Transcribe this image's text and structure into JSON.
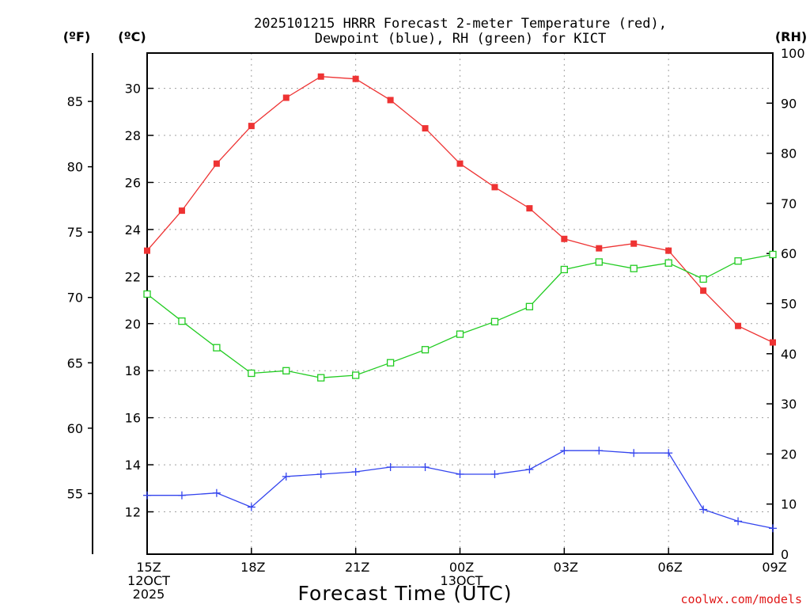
{
  "title_line1": "2025101215 HRRR Forecast 2-meter Temperature (red),",
  "title_line2": "Dewpoint (blue), RH (green) for KICT",
  "units": {
    "fahrenheit": "(ºF)",
    "celsius": "(ºC)",
    "rh": "(RH)"
  },
  "xlabel": "Forecast Time (UTC)",
  "credit": "coolwx.com/models",
  "colors": {
    "temperature": "#ee3333",
    "dewpoint": "#3344ee",
    "rh": "#22cc22",
    "axis": "#000000",
    "grid": "#a0a0a0"
  },
  "chart_data": {
    "type": "line",
    "title": "2025101215 HRRR Forecast 2-meter Temperature (red), Dewpoint (blue), RH (green) for KICT",
    "xlabel": "Forecast Time (UTC)",
    "x_hours": [
      0,
      1,
      2,
      3,
      4,
      5,
      6,
      7,
      8,
      9,
      10,
      11,
      12,
      13,
      14,
      15,
      16,
      17,
      18
    ],
    "x_ticks": [
      {
        "hour": 0,
        "lines": [
          "15Z",
          "12OCT",
          "2025"
        ]
      },
      {
        "hour": 3,
        "lines": [
          "18Z"
        ]
      },
      {
        "hour": 6,
        "lines": [
          "21Z"
        ]
      },
      {
        "hour": 9,
        "lines": [
          "00Z",
          "13OCT"
        ]
      },
      {
        "hour": 12,
        "lines": [
          "03Z"
        ]
      },
      {
        "hour": 15,
        "lines": [
          "06Z"
        ]
      },
      {
        "hour": 18,
        "lines": [
          "09Z"
        ]
      }
    ],
    "xlim": [
      0,
      18
    ],
    "celsius_ticks": [
      12,
      14,
      16,
      18,
      20,
      22,
      24,
      26,
      28,
      30
    ],
    "celsius_range": [
      10.2,
      31.5
    ],
    "fahrenheit_ticks": [
      55,
      60,
      65,
      70,
      75,
      80,
      85
    ],
    "rh_ticks": [
      0,
      10,
      20,
      30,
      40,
      50,
      60,
      70,
      80,
      90,
      100
    ],
    "rh_range": [
      0,
      100
    ],
    "series": [
      {
        "name": "Temperature",
        "axis": "celsius",
        "marker": "filled-square",
        "color": "#ee3333",
        "values": [
          23.1,
          24.8,
          26.8,
          28.4,
          29.6,
          30.5,
          30.4,
          29.5,
          28.3,
          26.8,
          25.8,
          24.9,
          23.6,
          23.2,
          23.4,
          23.1,
          21.4,
          19.9,
          19.2
        ]
      },
      {
        "name": "Dewpoint",
        "axis": "celsius",
        "marker": "plus",
        "color": "#3344ee",
        "values": [
          12.7,
          12.7,
          12.8,
          12.2,
          13.5,
          13.6,
          13.7,
          13.9,
          13.9,
          13.6,
          13.6,
          13.8,
          14.6,
          14.6,
          14.5,
          14.5,
          12.1,
          11.6,
          11.3
        ]
      },
      {
        "name": "RH",
        "axis": "rh",
        "marker": "open-square",
        "color": "#22cc22",
        "values": [
          51.9,
          46.5,
          41.2,
          36.1,
          36.6,
          35.2,
          35.7,
          38.2,
          40.8,
          43.9,
          46.4,
          49.4,
          56.8,
          58.3,
          57.0,
          58.1,
          54.9,
          58.5,
          59.8
        ]
      }
    ]
  }
}
